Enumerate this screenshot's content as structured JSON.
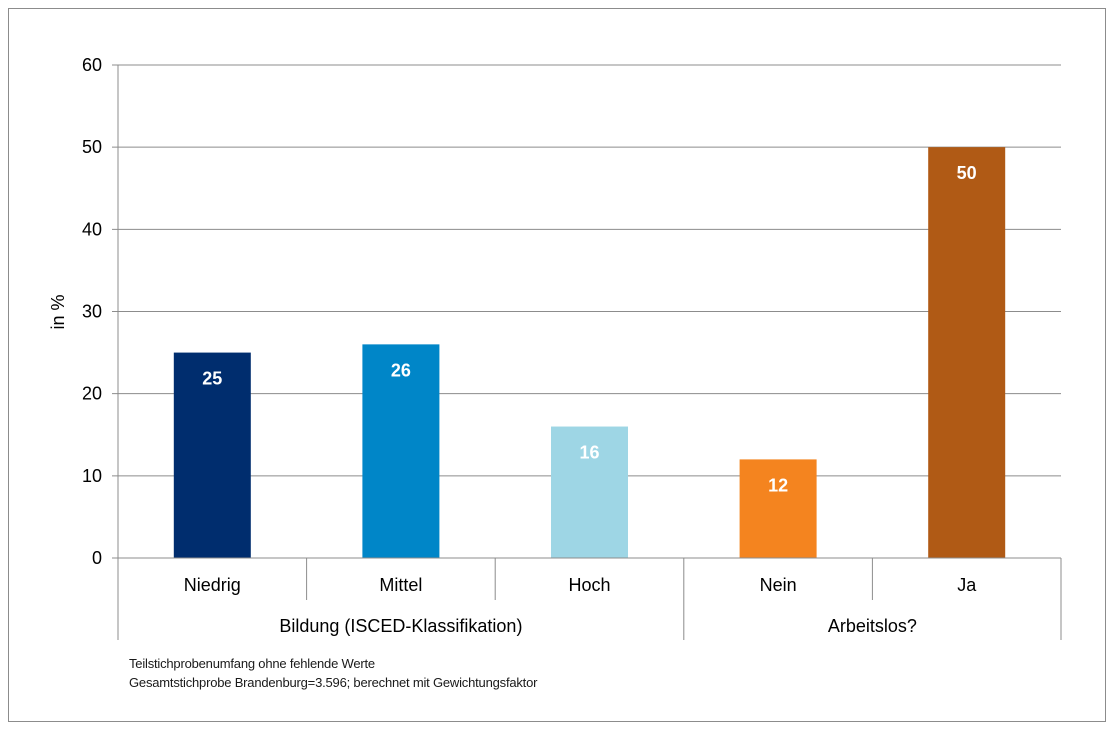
{
  "chart_data": {
    "type": "bar",
    "ylabel": "in %",
    "ylim": [
      0,
      60
    ],
    "yticks": [
      0,
      10,
      20,
      30,
      40,
      50,
      60
    ],
    "grid": true,
    "categories": [
      "Niedrig",
      "Mittel",
      "Hoch",
      "Nein",
      "Ja"
    ],
    "values": [
      25,
      26,
      16,
      12,
      50
    ],
    "data_labels": [
      "25",
      "26",
      "16",
      "12",
      "50"
    ],
    "colors": [
      "#002d6e",
      "#0086c8",
      "#9ed6e5",
      "#f4841f",
      "#b05a15"
    ],
    "groups": [
      {
        "label": "Bildung (ISCED-Klassifikation)",
        "members": [
          "Niedrig",
          "Mittel",
          "Hoch"
        ]
      },
      {
        "label": "Arbeitslos?",
        "members": [
          "Nein",
          "Ja"
        ]
      }
    ]
  },
  "footnotes": [
    "Teilstichprobenumfang ohne fehlende Werte",
    "Gesamtstichprobe Brandenburg=3.596; berechnet mit Gewichtungsfaktor"
  ]
}
